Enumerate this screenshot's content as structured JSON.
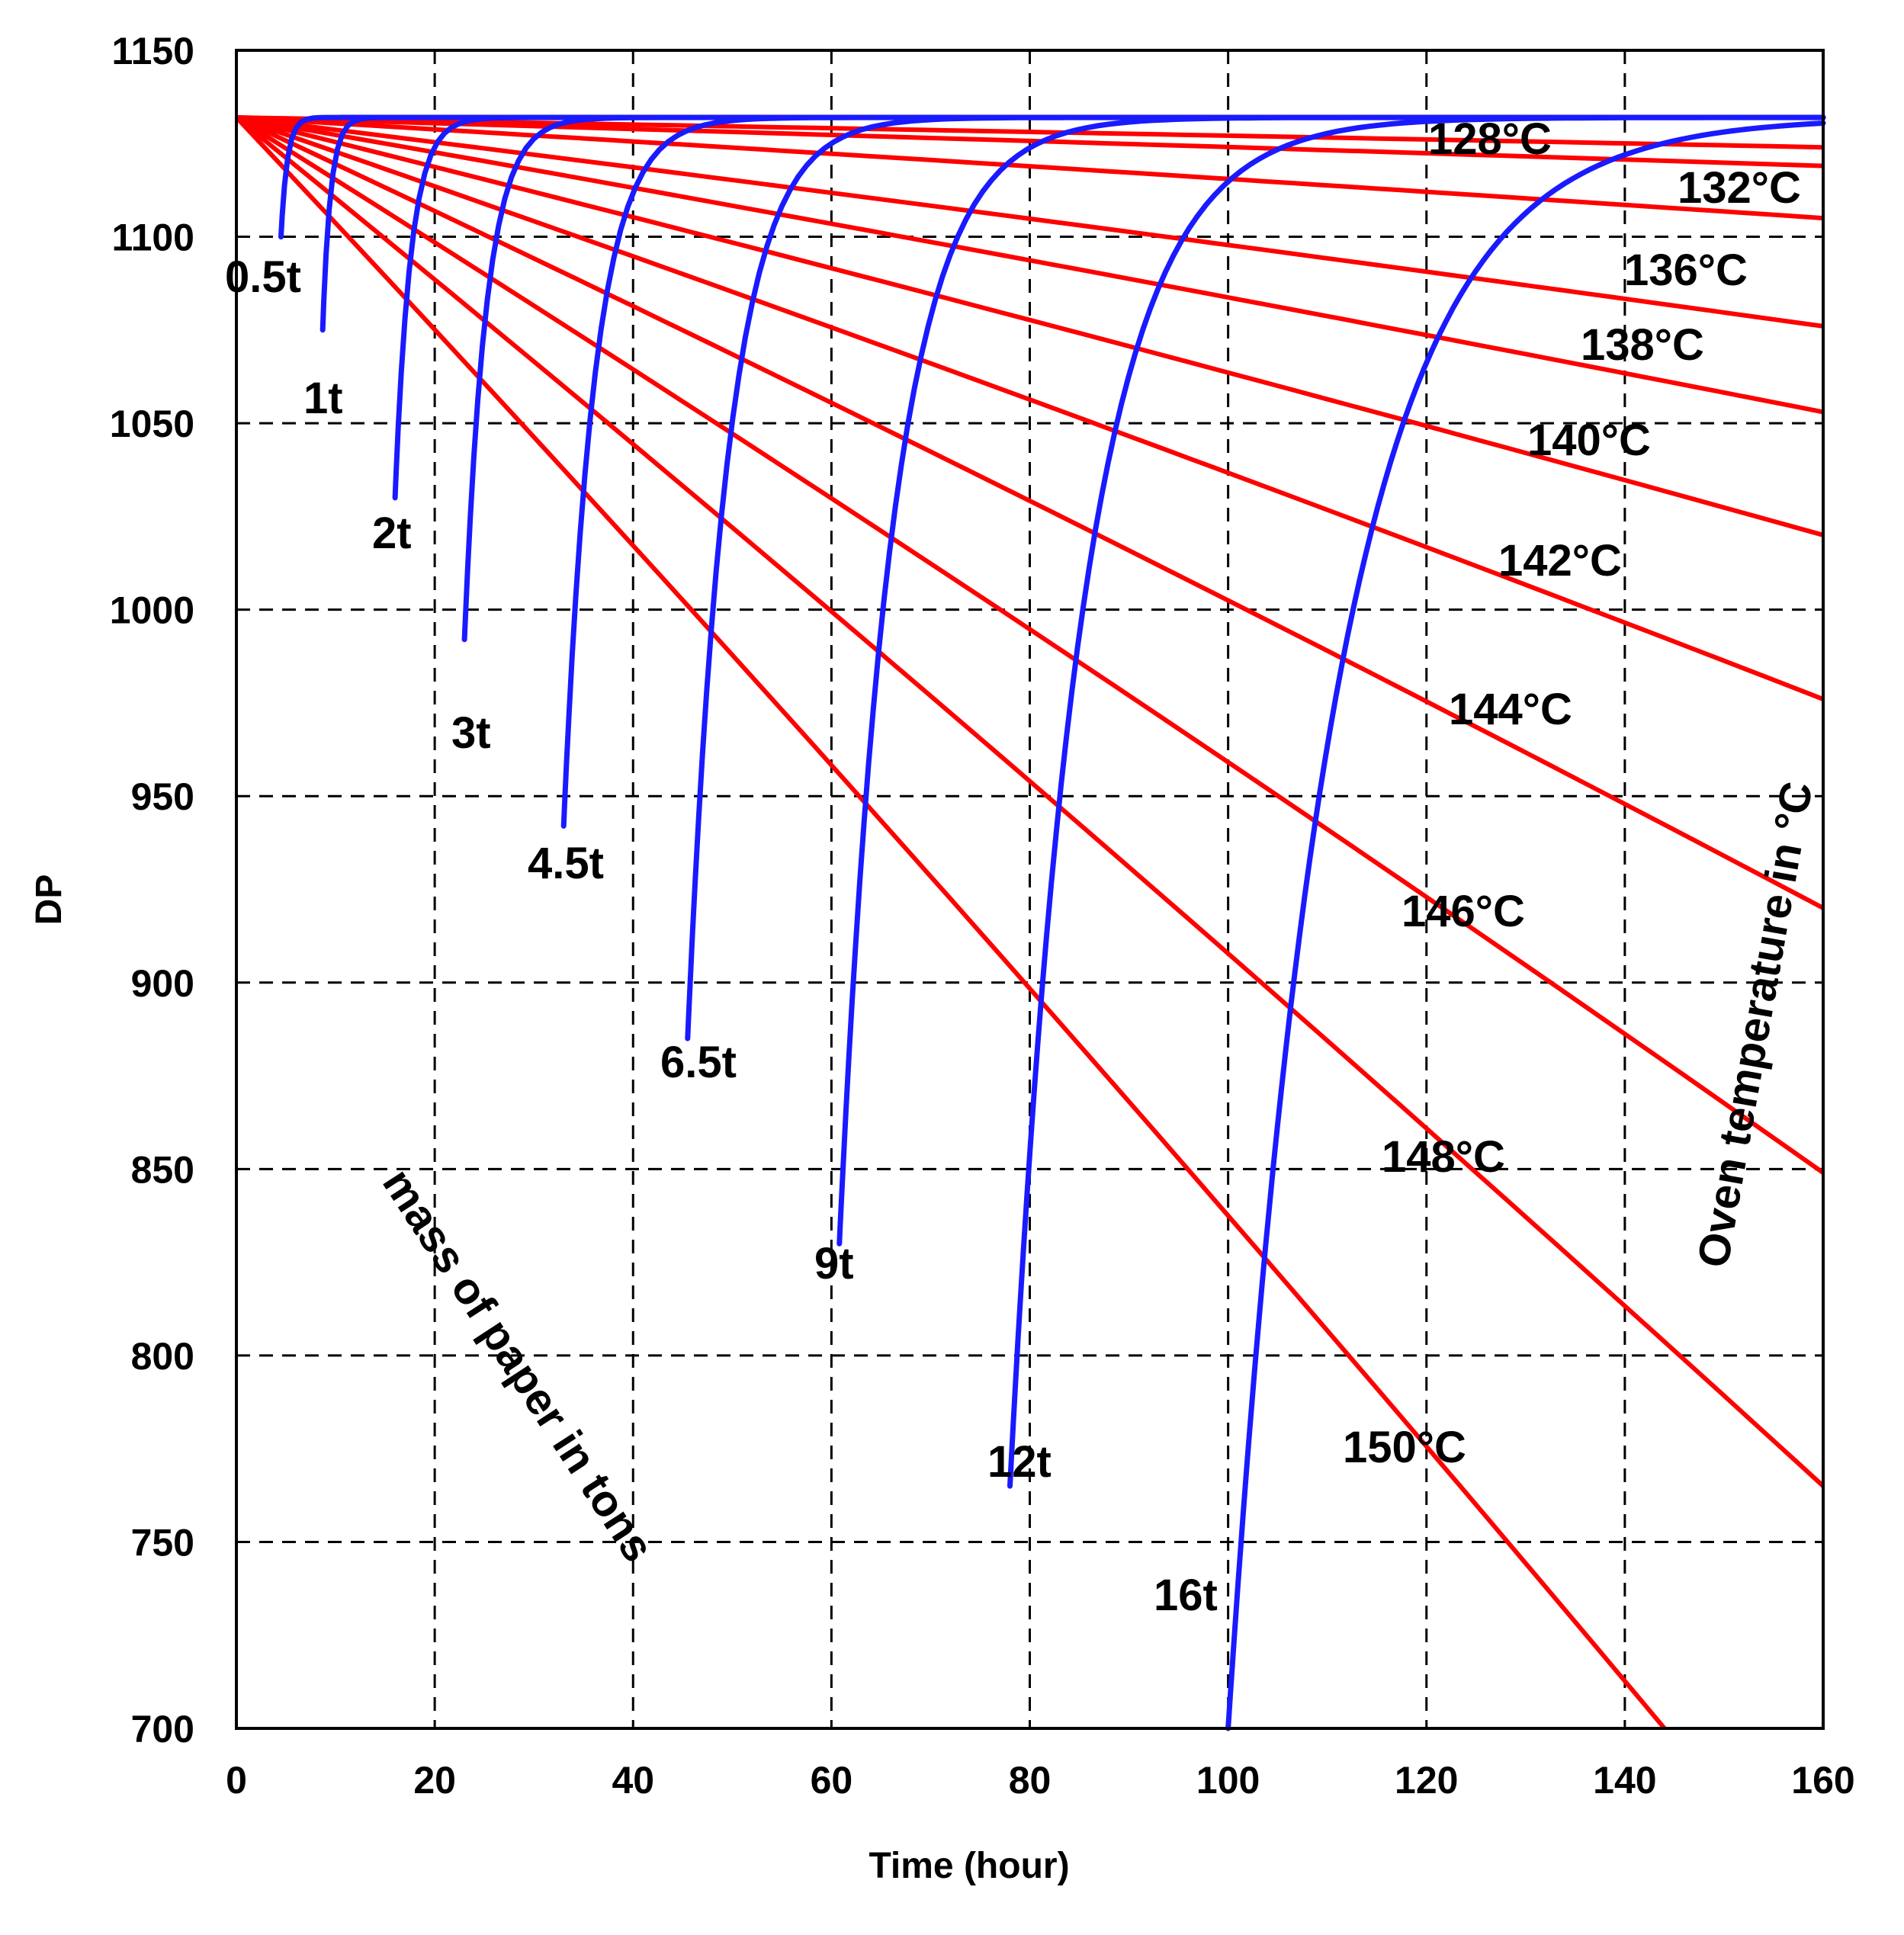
{
  "chart_data": {
    "type": "line",
    "title": "",
    "xlabel": "Time (hour)",
    "ylabel": "DP",
    "xlim": [
      0,
      160
    ],
    "ylim": [
      700,
      1150
    ],
    "xticks": [
      "0",
      "20",
      "40",
      "60",
      "80",
      "100",
      "120",
      "140",
      "160"
    ],
    "yticks": [
      "700",
      "750",
      "800",
      "850",
      "900",
      "950",
      "1000",
      "1050",
      "1100",
      "1150"
    ],
    "grid": true,
    "start_dp": 1132,
    "temperature_axis_title": "Oven temperature in °C",
    "mass_axis_title": "mass of paper in tons",
    "temperature_series": [
      {
        "name": "128°C",
        "end_dp": 1124
      },
      {
        "name": "132°C",
        "end_dp": 1119
      },
      {
        "name": "",
        "end_dp": 1105
      },
      {
        "name": "136°C",
        "end_dp": 1076
      },
      {
        "name": "138°C",
        "end_dp": 1053
      },
      {
        "name": "140°C",
        "end_dp": 1020
      },
      {
        "name": "142°C",
        "end_dp": 976
      },
      {
        "name": "144°C",
        "end_dp": 920
      },
      {
        "name": "146°C",
        "end_dp": 849
      },
      {
        "name": "148°C",
        "end_dp": 765
      },
      {
        "name": "150°C",
        "end_dp": 700,
        "end_time": 144
      }
    ],
    "mass_series": [
      {
        "name": "0.5t",
        "time": 4.5,
        "min_dp": 1100,
        "rise": 2
      },
      {
        "name": "1t",
        "time": 8.7,
        "min_dp": 1075,
        "rise": 2.5
      },
      {
        "name": "2t",
        "time": 16,
        "min_dp": 1030,
        "rise": 5
      },
      {
        "name": "3t",
        "time": 23,
        "min_dp": 992,
        "rise": 7
      },
      {
        "name": "4.5t",
        "time": 33,
        "min_dp": 942,
        "rise": 10
      },
      {
        "name": "6.5t",
        "time": 45.5,
        "min_dp": 885,
        "rise": 13
      },
      {
        "name": "9t",
        "time": 60.8,
        "min_dp": 830,
        "rise": 17
      },
      {
        "name": "12t",
        "time": 78,
        "min_dp": 765,
        "rise": 23
      },
      {
        "name": "16t",
        "time": 100,
        "min_dp": 700,
        "rise": 34
      }
    ]
  }
}
